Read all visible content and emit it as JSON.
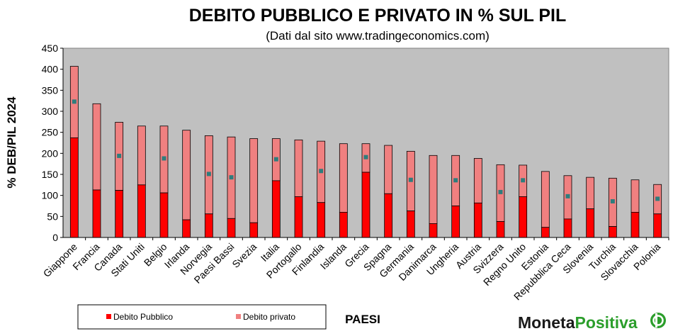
{
  "chart_data": {
    "type": "bar",
    "stacked": true,
    "title": "DEBITO PUBBLICO E PRIVATO IN % SUL PIL",
    "subtitle": "(Dati dal sito www.tradingeconomics.com)",
    "ylabel": "% DEB/PIL 2024",
    "xlabel": "PAESI",
    "ylim": [
      0,
      450
    ],
    "yticks": [
      0,
      50,
      100,
      150,
      200,
      250,
      300,
      350,
      400,
      450
    ],
    "grid": false,
    "legend_position": "bottom-left",
    "categories": [
      "Giappone",
      "Francia",
      "Canada",
      "Stati Uniti",
      "Belgio",
      "Irlanda",
      "Norvegia",
      "Paesi Bassi",
      "Svezia",
      "Italia",
      "Portogallo",
      "Finlandia",
      "Islanda",
      "Grecia",
      "Spagna",
      "Germania",
      "Danimarca",
      "Ungheria",
      "Austria",
      "Svizzera",
      "Regno Unito",
      "Estonia",
      "Repubblica Ceca",
      "Slovenia",
      "Turchia",
      "Slovacchia",
      "Polonia"
    ],
    "series": [
      {
        "name": "Debito Pubblico",
        "color": "#ff0000",
        "values": [
          237,
          113,
          112,
          125,
          106,
          42,
          56,
          45,
          35,
          135,
          97,
          83,
          60,
          155,
          104,
          63,
          33,
          75,
          82,
          38,
          97,
          24,
          44,
          68,
          26,
          60,
          56
        ]
      },
      {
        "name": "Debito privato",
        "color": "#f08080",
        "values": [
          170,
          205,
          162,
          140,
          159,
          213,
          186,
          194,
          200,
          100,
          135,
          146,
          163,
          68,
          115,
          142,
          162,
          120,
          106,
          135,
          75,
          133,
          103,
          75,
          115,
          77,
          70
        ]
      }
    ],
    "markers": {
      "color": "#2e7d7d",
      "values": [
        323,
        null,
        194,
        null,
        188,
        null,
        151,
        143,
        null,
        186,
        null,
        158,
        null,
        191,
        null,
        137,
        null,
        136,
        null,
        108,
        136,
        null,
        98,
        null,
        86,
        null,
        92
      ]
    },
    "colors": {
      "plot_background": "#c0c0c0",
      "axis": "#000000"
    }
  },
  "legend": {
    "items": [
      {
        "label": "Debito Pubblico",
        "color": "#ff0000"
      },
      {
        "label": "Debito privato",
        "color": "#f08080"
      }
    ]
  },
  "brand": {
    "part1": "Moneta",
    "part2": "Positiva",
    "colors": [
      "#1a1a1a",
      "#2b9e2b"
    ]
  }
}
